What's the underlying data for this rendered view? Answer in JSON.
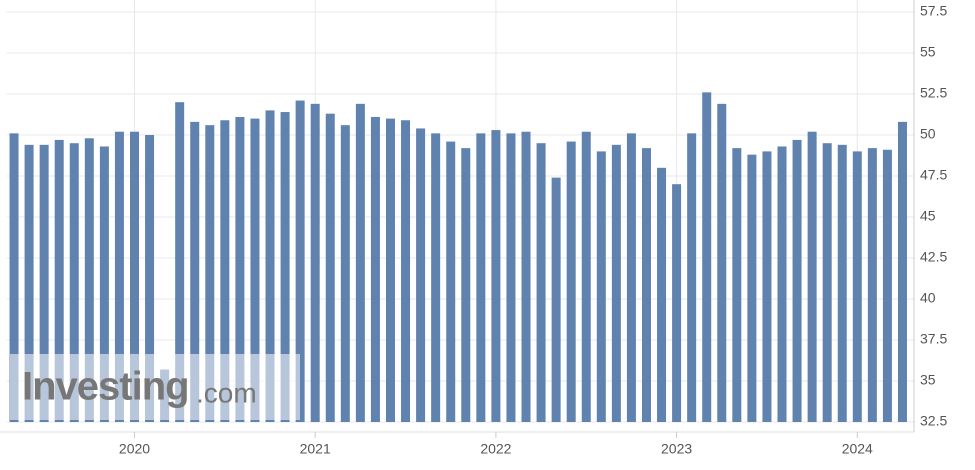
{
  "chart_data": {
    "type": "bar",
    "color": "#5f82af",
    "grid": true,
    "watermark": [
      "Investing",
      ".com"
    ],
    "categories": [
      null,
      null,
      null,
      null,
      null,
      null,
      null,
      null,
      null,
      "2020",
      null,
      null,
      null,
      null,
      null,
      null,
      null,
      null,
      null,
      null,
      null,
      "2021",
      null,
      null,
      null,
      null,
      null,
      null,
      null,
      null,
      null,
      null,
      null,
      "2022",
      null,
      null,
      null,
      null,
      null,
      null,
      null,
      null,
      null,
      null,
      null,
      "2023",
      null,
      null,
      null,
      null,
      null,
      null,
      null,
      null,
      null,
      null,
      null,
      "2024",
      null,
      null
    ],
    "values": [
      50.1,
      49.4,
      49.4,
      49.7,
      49.5,
      49.8,
      49.3,
      50.2,
      50.2,
      50.0,
      35.7,
      52.0,
      50.8,
      50.6,
      50.9,
      51.1,
      51.0,
      51.5,
      51.4,
      52.1,
      51.9,
      51.3,
      50.6,
      51.9,
      51.1,
      51.0,
      50.9,
      50.4,
      50.1,
      49.6,
      49.2,
      50.1,
      50.3,
      50.1,
      50.2,
      49.5,
      47.4,
      49.6,
      50.2,
      49.0,
      49.4,
      50.1,
      49.2,
      48.0,
      47.0,
      50.1,
      52.6,
      51.9,
      49.2,
      48.8,
      49.0,
      49.3,
      49.7,
      50.2,
      49.5,
      49.4,
      49.0,
      49.2,
      49.1,
      50.8
    ],
    "ylim": [
      32.5,
      57.5
    ],
    "yticks": [
      32.5,
      35,
      37.5,
      40,
      42.5,
      45,
      47.5,
      50,
      52.5,
      55,
      57.5
    ]
  }
}
